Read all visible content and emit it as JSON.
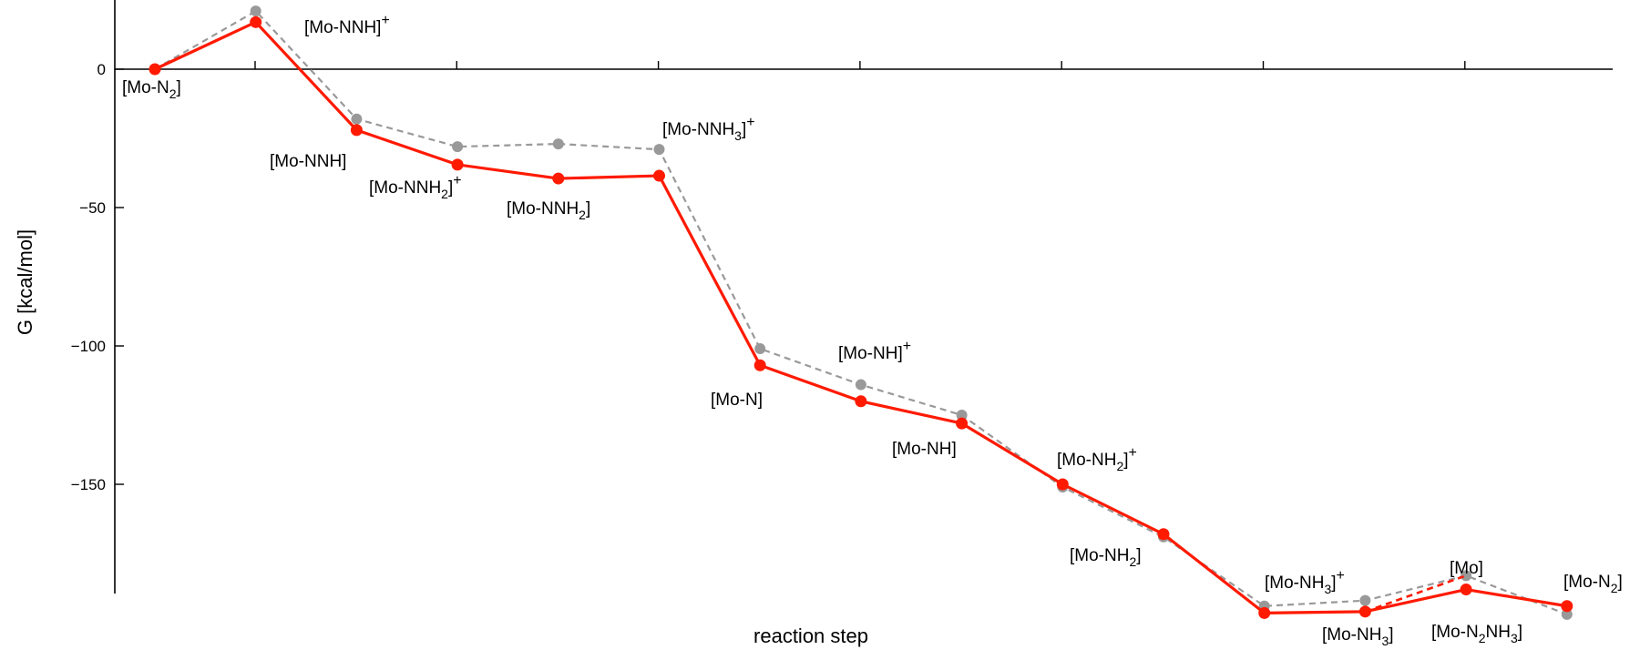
{
  "chart_data": {
    "type": "line",
    "xlabel": "reaction step",
    "ylabel": "G [kcal/mol]",
    "ylim": [
      -190,
      20
    ],
    "yticks": [
      0,
      -50,
      -100,
      -150
    ],
    "grid": false,
    "x": [
      0,
      1,
      2,
      3,
      4,
      5,
      6,
      7,
      8,
      9,
      10,
      11,
      12,
      13,
      14
    ],
    "series": [
      {
        "color": "#ff1a00",
        "style": "solid",
        "values": [
          0,
          17,
          -22,
          -34.5,
          -39.5,
          -38.5,
          -107,
          -120,
          -128,
          -150,
          -168,
          -196.5,
          -196,
          -188,
          -194
        ]
      },
      {
        "color": "#999999",
        "style": "dashed",
        "values": [
          0,
          21,
          -18,
          -28,
          -27,
          -29,
          -101,
          -114,
          -125,
          -151,
          -169,
          -194,
          -192,
          -183,
          -197
        ]
      }
    ],
    "branch": {
      "color": "#ff1a00",
      "style": "dashed",
      "from_x": 12,
      "from_y": -196,
      "to_x": 13,
      "to_y": -183
    },
    "annotations": [
      {
        "text": "[Mo-N",
        "sub": "2",
        "tail": "]",
        "sup": ""
      },
      {
        "text": "[Mo-NNH]",
        "sub": "",
        "tail": "",
        "sup": "+"
      },
      {
        "text": "[Mo-NNH]",
        "sub": "",
        "tail": "",
        "sup": ""
      },
      {
        "text": "[Mo-NNH",
        "sub": "2",
        "tail": "]",
        "sup": "+"
      },
      {
        "text": "[Mo-NNH",
        "sub": "2",
        "tail": "]",
        "sup": ""
      },
      {
        "text": "[Mo-NNH",
        "sub": "3",
        "tail": "]",
        "sup": "+"
      },
      {
        "text": "[Mo-N]",
        "sub": "",
        "tail": "",
        "sup": ""
      },
      {
        "text": "[Mo-NH]",
        "sub": "",
        "tail": "",
        "sup": "+"
      },
      {
        "text": "[Mo-NH]",
        "sub": "",
        "tail": "",
        "sup": ""
      },
      {
        "text": "[Mo-NH",
        "sub": "2",
        "tail": "]",
        "sup": "+"
      },
      {
        "text": "[Mo-NH",
        "sub": "2",
        "tail": "]",
        "sup": ""
      },
      {
        "text": "[Mo-NH",
        "sub": "3",
        "tail": "]",
        "sup": "+"
      },
      {
        "text": "[Mo-NH",
        "sub": "3",
        "tail": "]",
        "sup": ""
      },
      {
        "text": "[Mo]",
        "sub": "",
        "tail": "",
        "sup": ""
      },
      {
        "text": "[Mo-N",
        "sub": "2",
        "tail": "NH",
        "sup": "",
        "sub2": "3",
        "tail2": "]"
      },
      {
        "text": "[Mo-N",
        "sub": "2",
        "tail": "]",
        "sup": ""
      }
    ]
  }
}
